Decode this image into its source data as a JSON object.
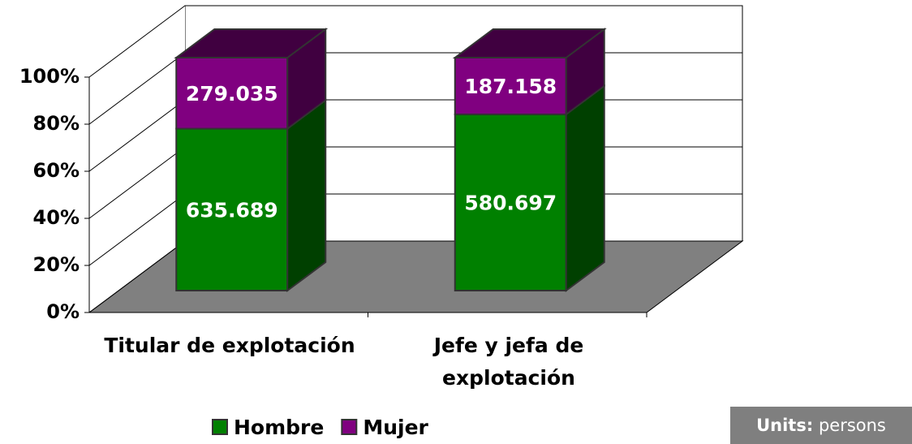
{
  "chart_data": {
    "type": "bar",
    "stacked": "percent",
    "categories": [
      "Titular de explotación",
      "Jefe y jefa de explotación"
    ],
    "series": [
      {
        "name": "Hombre",
        "color": "#008000",
        "values": [
          635689,
          580697
        ],
        "value_labels": [
          "635.689",
          "580.697"
        ]
      },
      {
        "name": "Mujer",
        "color": "#800080",
        "values": [
          279035,
          187158
        ],
        "value_labels": [
          "279.035",
          "187.158"
        ]
      }
    ],
    "ylim": [
      0,
      100
    ],
    "yticks": [
      {
        "value": 0,
        "label": "0%"
      },
      {
        "value": 20,
        "label": "20%"
      },
      {
        "value": 40,
        "label": "40%"
      },
      {
        "value": 60,
        "label": "60%"
      },
      {
        "value": 80,
        "label": "80%"
      },
      {
        "value": 100,
        "label": "100%"
      }
    ],
    "grid": true,
    "legend": "bottom",
    "annotation": {
      "label": "Units:",
      "text": "persons"
    }
  }
}
